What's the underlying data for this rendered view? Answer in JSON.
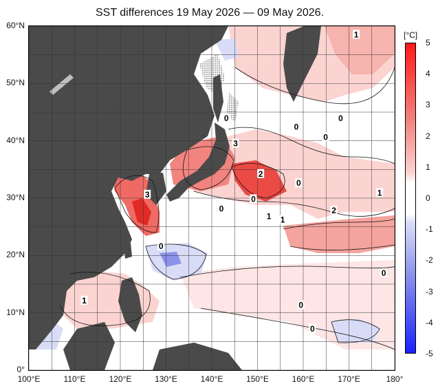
{
  "title": "SST differences 19 May 2026 — 09 May 2026.",
  "colorbar": {
    "unit": "[°C]",
    "ticks": [
      "5",
      "4",
      "3",
      "2",
      "1",
      "0",
      "-1",
      "-2",
      "-3",
      "-4",
      "-5"
    ],
    "colors": {
      "max_warm": "#ff1a1a",
      "warm_mid": "#f2847f",
      "warm_light": "#fbd4d2",
      "neutral": "#ffffff",
      "cool_light": "#d8dcf7",
      "cool_mid": "#8a92ea",
      "max_cool": "#1a22ff"
    }
  },
  "axes": {
    "lat_labels": [
      "60°N",
      "50°N",
      "40°N",
      "30°N",
      "20°N",
      "10°N",
      "0°"
    ],
    "lon_labels": [
      "100°E",
      "110°E",
      "120°E",
      "130°E",
      "140°E",
      "150°E",
      "160°E",
      "170°E",
      "180°"
    ]
  },
  "land_color": "#4a4a4a",
  "contour_labels": [
    {
      "text": "1",
      "lon": 171.6,
      "lat": 58.4
    },
    {
      "text": "0",
      "lon": 143.2,
      "lat": 43.8
    },
    {
      "text": "0",
      "lon": 158.5,
      "lat": 42.3
    },
    {
      "text": "0",
      "lon": 168.2,
      "lat": 43.8
    },
    {
      "text": "0",
      "lon": 164.9,
      "lat": 40.5
    },
    {
      "text": "3",
      "lon": 145.2,
      "lat": 39.4
    },
    {
      "text": "2",
      "lon": 150.7,
      "lat": 34.1
    },
    {
      "text": "3",
      "lon": 125.9,
      "lat": 30.5
    },
    {
      "text": "0",
      "lon": 142.1,
      "lat": 28.0
    },
    {
      "text": "0",
      "lon": 149.1,
      "lat": 29.7
    },
    {
      "text": "0",
      "lon": 159.0,
      "lat": 32.5
    },
    {
      "text": "1",
      "lon": 152.5,
      "lat": 26.7
    },
    {
      "text": "1",
      "lon": 155.5,
      "lat": 26.1
    },
    {
      "text": "2",
      "lon": 166.7,
      "lat": 27.7
    },
    {
      "text": "1",
      "lon": 176.7,
      "lat": 30.8
    },
    {
      "text": "0",
      "lon": 128.9,
      "lat": 21.5
    },
    {
      "text": "1",
      "lon": 112.1,
      "lat": 12.0
    },
    {
      "text": "0",
      "lon": 177.6,
      "lat": 16.8
    },
    {
      "text": "0",
      "lon": 159.5,
      "lat": 11.2
    },
    {
      "text": "0",
      "lon": 162.0,
      "lat": 7.1
    }
  ]
}
